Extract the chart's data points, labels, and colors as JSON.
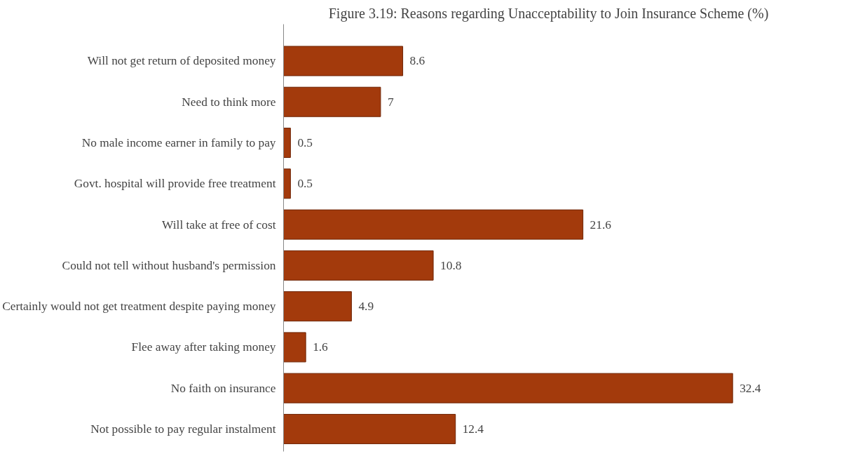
{
  "chart_data": {
    "type": "bar",
    "orientation": "horizontal",
    "title": "Figure 3.19: Reasons regarding Unacceptability to Join Insurance Scheme (%)",
    "categories": [
      "Will not get return of deposited money",
      "Need to think more",
      "No male income earner in family to pay",
      "Govt. hospital will provide free treatment",
      "Will take at free of cost",
      "Could not tell without husband's permission",
      "Certainly would not get treatment despite paying money",
      "Flee away after taking money",
      "No faith on insurance",
      "Not possible to pay regular instalment"
    ],
    "values": [
      8.6,
      7,
      0.5,
      0.5,
      21.6,
      10.8,
      4.9,
      1.6,
      32.4,
      12.4
    ],
    "color": "#a33a0c",
    "data_labels": true,
    "grid": false
  }
}
